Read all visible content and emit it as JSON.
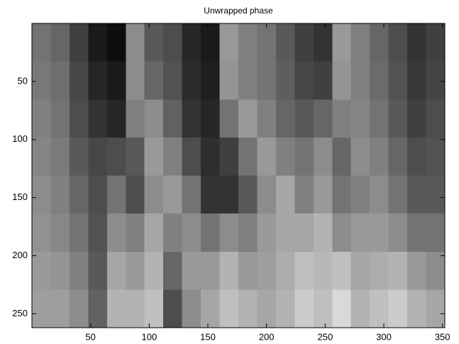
{
  "chart_data": {
    "type": "image",
    "title": "Unwrapped phase",
    "colormap": "gray",
    "clim": [
      0,
      1
    ],
    "y_reversed": true,
    "xlim": [
      0,
      352
    ],
    "ylim": [
      0,
      262
    ],
    "xticks": [
      50,
      100,
      150,
      200,
      250,
      300,
      350
    ],
    "yticks": [
      50,
      100,
      150,
      200,
      250
    ],
    "z": [
      [
        0.45,
        0.4,
        0.25,
        0.1,
        0.05,
        0.55,
        0.35,
        0.3,
        0.15,
        0.1,
        0.6,
        0.5,
        0.45,
        0.35,
        0.25,
        0.2,
        0.6,
        0.5,
        0.4,
        0.3,
        0.2,
        0.25
      ],
      [
        0.47,
        0.43,
        0.28,
        0.15,
        0.1,
        0.55,
        0.4,
        0.32,
        0.17,
        0.12,
        0.58,
        0.5,
        0.45,
        0.37,
        0.28,
        0.25,
        0.58,
        0.5,
        0.42,
        0.32,
        0.22,
        0.27
      ],
      [
        0.5,
        0.45,
        0.3,
        0.2,
        0.15,
        0.5,
        0.55,
        0.38,
        0.2,
        0.15,
        0.45,
        0.6,
        0.5,
        0.4,
        0.35,
        0.4,
        0.5,
        0.52,
        0.45,
        0.35,
        0.25,
        0.3
      ],
      [
        0.52,
        0.48,
        0.35,
        0.28,
        0.3,
        0.35,
        0.6,
        0.5,
        0.3,
        0.18,
        0.25,
        0.45,
        0.6,
        0.5,
        0.45,
        0.55,
        0.4,
        0.55,
        0.5,
        0.4,
        0.3,
        0.32
      ],
      [
        0.55,
        0.5,
        0.4,
        0.3,
        0.45,
        0.3,
        0.55,
        0.6,
        0.45,
        0.2,
        0.2,
        0.35,
        0.55,
        0.65,
        0.5,
        0.6,
        0.45,
        0.5,
        0.55,
        0.45,
        0.35,
        0.35
      ],
      [
        0.57,
        0.53,
        0.45,
        0.32,
        0.55,
        0.5,
        0.65,
        0.5,
        0.55,
        0.45,
        0.55,
        0.5,
        0.6,
        0.65,
        0.65,
        0.7,
        0.55,
        0.6,
        0.6,
        0.55,
        0.45,
        0.45
      ],
      [
        0.6,
        0.58,
        0.5,
        0.35,
        0.65,
        0.6,
        0.7,
        0.4,
        0.6,
        0.6,
        0.7,
        0.6,
        0.62,
        0.68,
        0.75,
        0.72,
        0.75,
        0.65,
        0.68,
        0.7,
        0.6,
        0.55
      ],
      [
        0.62,
        0.62,
        0.55,
        0.38,
        0.7,
        0.7,
        0.75,
        0.3,
        0.55,
        0.65,
        0.75,
        0.7,
        0.65,
        0.7,
        0.8,
        0.75,
        0.85,
        0.7,
        0.75,
        0.8,
        0.7,
        0.65
      ]
    ]
  }
}
